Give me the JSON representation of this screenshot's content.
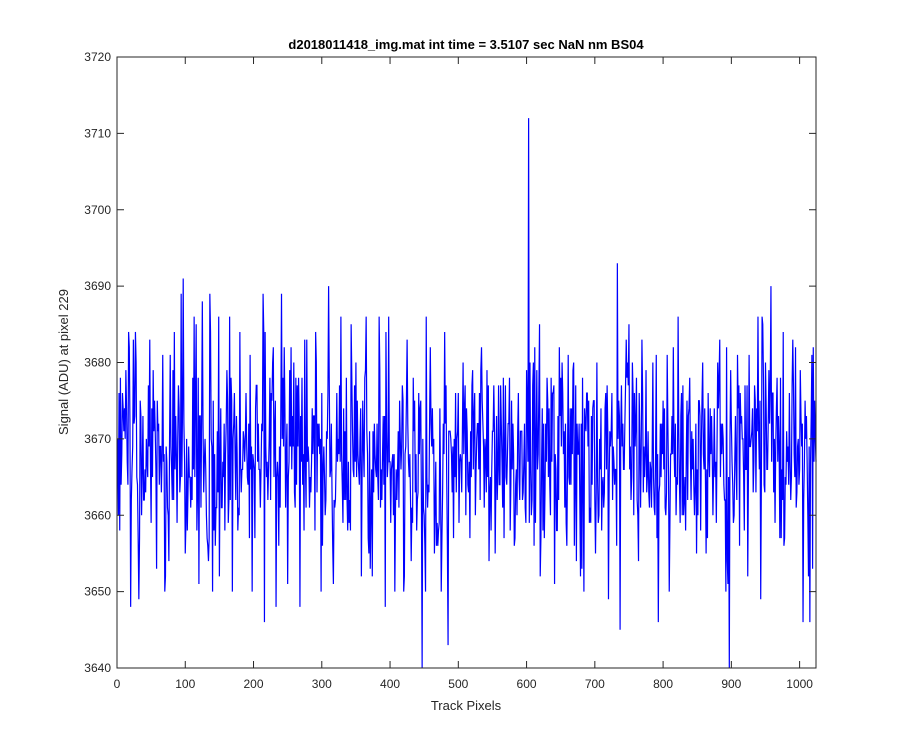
{
  "chart_data": {
    "type": "line",
    "title": "d2018011418_img.mat int time = 3.5107 sec  NaN nm BS04",
    "xlabel": "Track Pixels",
    "ylabel": "Signal (ADU) at pixel 229",
    "xlim": [
      0,
      1024
    ],
    "ylim": [
      3640,
      3720
    ],
    "x_ticks": [
      "0",
      "100",
      "200",
      "300",
      "400",
      "500",
      "600",
      "700",
      "800",
      "900",
      "1000"
    ],
    "y_ticks": [
      "3640",
      "3650",
      "3660",
      "3670",
      "3680",
      "3690",
      "3700",
      "3710",
      "3720"
    ],
    "grid": false,
    "line_color": "#0000ff",
    "series": [
      {
        "x_start": 1,
        "x_step": 1,
        "anchors": [
          [
            1,
            3670
          ],
          [
            10,
            3671
          ],
          [
            17,
            3684
          ],
          [
            20,
            3648
          ],
          [
            27,
            3684
          ],
          [
            28,
            3680
          ],
          [
            32,
            3649
          ],
          [
            40,
            3662
          ],
          [
            48,
            3683
          ],
          [
            53,
            3679
          ],
          [
            58,
            3653
          ],
          [
            67,
            3681
          ],
          [
            71,
            3652
          ],
          [
            78,
            3681
          ],
          [
            89,
            3670
          ],
          [
            94,
            3689
          ],
          [
            97,
            3691
          ],
          [
            100,
            3655
          ],
          [
            103,
            3658
          ],
          [
            118,
            3663
          ],
          [
            120,
            3651
          ],
          [
            125,
            3688
          ],
          [
            128,
            3667
          ],
          [
            136,
            3689
          ],
          [
            142,
            3658
          ],
          [
            148,
            3663
          ],
          [
            150,
            3652
          ],
          [
            165,
            3686
          ],
          [
            174,
            3662
          ],
          [
            180,
            3684
          ],
          [
            192,
            3664
          ],
          [
            195,
            3681
          ],
          [
            210,
            3661
          ],
          [
            214,
            3689
          ],
          [
            216,
            3646
          ],
          [
            220,
            3667
          ],
          [
            228,
            3680
          ],
          [
            233,
            3648
          ],
          [
            241,
            3689
          ],
          [
            250,
            3651
          ],
          [
            255,
            3682
          ],
          [
            260,
            3663
          ],
          [
            268,
            3648
          ],
          [
            275,
            3683
          ],
          [
            282,
            3661
          ],
          [
            293,
            3663
          ],
          [
            300,
            3676
          ],
          [
            308,
            3670
          ],
          [
            310,
            3690
          ],
          [
            316,
            3656
          ],
          [
            328,
            3686
          ],
          [
            340,
            3659
          ],
          [
            350,
            3680
          ],
          [
            358,
            3652
          ],
          [
            365,
            3686
          ],
          [
            374,
            3652
          ],
          [
            385,
            3679
          ],
          [
            393,
            3648
          ],
          [
            398,
            3686
          ],
          [
            410,
            3662
          ],
          [
            420,
            3650
          ],
          [
            425,
            3683
          ],
          [
            435,
            3671
          ],
          [
            447,
            3640
          ],
          [
            453,
            3686
          ],
          [
            460,
            3672
          ],
          [
            470,
            3656
          ],
          [
            485,
            3643
          ],
          [
            490,
            3668
          ],
          [
            500,
            3676
          ],
          [
            515,
            3663
          ],
          [
            520,
            3677
          ],
          [
            525,
            3660
          ],
          [
            533,
            3679
          ],
          [
            545,
            3654
          ],
          [
            558,
            3666
          ],
          [
            570,
            3665
          ],
          [
            582,
            3656
          ],
          [
            590,
            3662
          ],
          [
            600,
            3679
          ],
          [
            603,
            3712
          ],
          [
            607,
            3660
          ],
          [
            612,
            3682
          ],
          [
            620,
            3652
          ],
          [
            633,
            3674
          ],
          [
            645,
            3658
          ],
          [
            657,
            3672
          ],
          [
            670,
            3656
          ],
          [
            685,
            3674
          ],
          [
            700,
            3662
          ],
          [
            712,
            3665
          ],
          [
            720,
            3649
          ],
          [
            728,
            3667
          ],
          [
            733,
            3693
          ],
          [
            735,
            3675
          ],
          [
            737,
            3645
          ],
          [
            745,
            3677
          ],
          [
            760,
            3672
          ],
          [
            775,
            3679
          ],
          [
            788,
            3660
          ],
          [
            790,
            3681
          ],
          [
            793,
            3646
          ],
          [
            800,
            3675
          ],
          [
            815,
            3682
          ],
          [
            830,
            3660
          ],
          [
            838,
            3674
          ],
          [
            850,
            3666
          ],
          [
            865,
            3657
          ],
          [
            880,
            3680
          ],
          [
            892,
            3650
          ],
          [
            897,
            3640
          ],
          [
            900,
            3672
          ],
          [
            912,
            3656
          ],
          [
            925,
            3665
          ],
          [
            935,
            3675
          ],
          [
            943,
            3649
          ],
          [
            950,
            3680
          ],
          [
            958,
            3690
          ],
          [
            965,
            3669
          ],
          [
            980,
            3664
          ],
          [
            990,
            3683
          ],
          [
            1000,
            3666
          ],
          [
            1005,
            3646
          ],
          [
            1010,
            3673
          ],
          [
            1015,
            3646
          ],
          [
            1020,
            3682
          ],
          [
            1024,
            3667
          ]
        ]
      }
    ]
  }
}
